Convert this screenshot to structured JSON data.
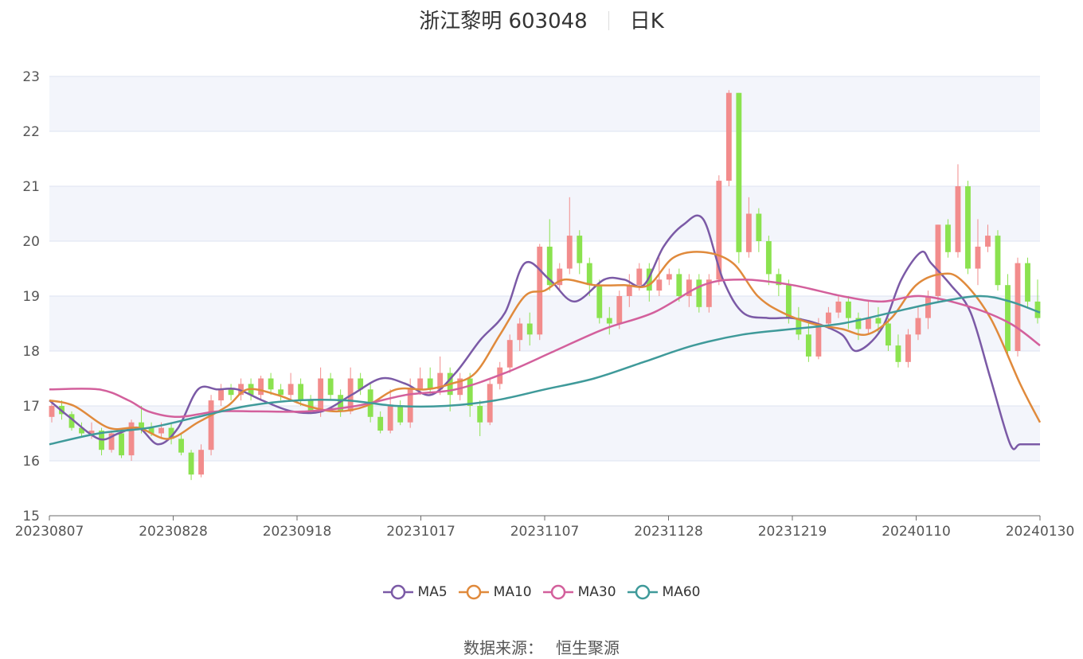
{
  "header": {
    "stock_title": "浙江黎明 603048",
    "period": "日K"
  },
  "source": {
    "label": "数据来源：",
    "name": "恒生聚源"
  },
  "colors": {
    "up": "#f28c8c",
    "down": "#8be24f",
    "MA5": "#7b5aa6",
    "MA10": "#e08a3c",
    "MA30": "#d3609c",
    "MA60": "#3f9a9a",
    "grid": "#dde3f0",
    "band": "#f3f5fb"
  },
  "chart_data": {
    "type": "candlestick",
    "ylim": [
      15,
      23
    ],
    "yticks": [
      "15",
      "16",
      "17",
      "18",
      "19",
      "20",
      "21",
      "22",
      "23"
    ],
    "xticks": [
      "20230807",
      "20230828",
      "20230918",
      "20231017",
      "20231107",
      "20231128",
      "20231219",
      "20240110",
      "20240130"
    ],
    "legend": [
      "MA5",
      "MA10",
      "MA30",
      "MA60"
    ],
    "ma": {
      "MA5": [
        [
          0,
          17.1
        ],
        [
          4,
          16.8
        ],
        [
          10,
          16.4
        ],
        [
          14,
          16.5
        ],
        [
          18,
          16.6
        ],
        [
          22,
          16.3
        ],
        [
          26,
          16.6
        ],
        [
          30,
          17.3
        ],
        [
          34,
          17.3
        ],
        [
          38,
          17.3
        ],
        [
          43,
          17.1
        ],
        [
          49,
          16.9
        ],
        [
          55,
          16.9
        ],
        [
          61,
          17.2
        ],
        [
          67,
          17.5
        ],
        [
          72,
          17.4
        ],
        [
          77,
          17.2
        ],
        [
          82,
          17.6
        ],
        [
          87,
          18.2
        ],
        [
          92,
          18.7
        ],
        [
          96,
          19.6
        ],
        [
          101,
          19.3
        ],
        [
          106,
          18.9
        ],
        [
          112,
          19.3
        ],
        [
          116,
          19.3
        ],
        [
          120,
          19.2
        ],
        [
          124,
          19.9
        ],
        [
          128,
          20.3
        ],
        [
          132,
          20.4
        ],
        [
          136,
          19.3
        ],
        [
          140,
          18.7
        ],
        [
          145,
          18.6
        ],
        [
          150,
          18.6
        ],
        [
          155,
          18.5
        ],
        [
          160,
          18.3
        ],
        [
          163,
          18.0
        ],
        [
          168,
          18.4
        ],
        [
          172,
          19.3
        ],
        [
          176,
          19.8
        ],
        [
          178,
          19.6
        ],
        [
          182,
          19.2
        ],
        [
          186,
          18.7
        ],
        [
          190,
          17.5
        ],
        [
          194,
          16.3
        ],
        [
          196,
          16.3
        ],
        [
          200,
          16.3
        ]
      ],
      "MA10": [
        [
          0,
          17.1
        ],
        [
          5,
          17.0
        ],
        [
          12,
          16.6
        ],
        [
          18,
          16.6
        ],
        [
          24,
          16.4
        ],
        [
          30,
          16.7
        ],
        [
          36,
          17.0
        ],
        [
          40,
          17.3
        ],
        [
          46,
          17.2
        ],
        [
          52,
          17.0
        ],
        [
          58,
          16.9
        ],
        [
          64,
          17.0
        ],
        [
          70,
          17.3
        ],
        [
          76,
          17.3
        ],
        [
          81,
          17.4
        ],
        [
          86,
          17.6
        ],
        [
          91,
          18.3
        ],
        [
          96,
          19.0
        ],
        [
          100,
          19.1
        ],
        [
          104,
          19.3
        ],
        [
          110,
          19.2
        ],
        [
          116,
          19.2
        ],
        [
          121,
          19.2
        ],
        [
          126,
          19.7
        ],
        [
          132,
          19.8
        ],
        [
          138,
          19.6
        ],
        [
          143,
          19.0
        ],
        [
          148,
          18.7
        ],
        [
          154,
          18.5
        ],
        [
          160,
          18.4
        ],
        [
          165,
          18.3
        ],
        [
          170,
          18.6
        ],
        [
          175,
          19.2
        ],
        [
          180,
          19.4
        ],
        [
          184,
          19.3
        ],
        [
          190,
          18.6
        ],
        [
          196,
          17.4
        ],
        [
          200,
          16.7
        ]
      ],
      "MA30": [
        [
          0,
          17.3
        ],
        [
          10,
          17.3
        ],
        [
          16,
          17.1
        ],
        [
          20,
          16.9
        ],
        [
          26,
          16.8
        ],
        [
          34,
          16.9
        ],
        [
          42,
          16.9
        ],
        [
          52,
          16.9
        ],
        [
          62,
          17.0
        ],
        [
          72,
          17.2
        ],
        [
          82,
          17.3
        ],
        [
          92,
          17.6
        ],
        [
          102,
          18.0
        ],
        [
          112,
          18.4
        ],
        [
          122,
          18.7
        ],
        [
          132,
          19.2
        ],
        [
          140,
          19.3
        ],
        [
          150,
          19.2
        ],
        [
          160,
          19.0
        ],
        [
          168,
          18.9
        ],
        [
          176,
          19.0
        ],
        [
          186,
          18.8
        ],
        [
          194,
          18.5
        ],
        [
          200,
          18.1
        ]
      ],
      "MA60": [
        [
          0,
          16.3
        ],
        [
          10,
          16.5
        ],
        [
          20,
          16.6
        ],
        [
          30,
          16.8
        ],
        [
          40,
          17.0
        ],
        [
          50,
          17.1
        ],
        [
          60,
          17.1
        ],
        [
          70,
          17.0
        ],
        [
          80,
          17.0
        ],
        [
          90,
          17.1
        ],
        [
          100,
          17.3
        ],
        [
          110,
          17.5
        ],
        [
          120,
          17.8
        ],
        [
          130,
          18.1
        ],
        [
          140,
          18.3
        ],
        [
          150,
          18.4
        ],
        [
          160,
          18.5
        ],
        [
          170,
          18.7
        ],
        [
          180,
          18.9
        ],
        [
          188,
          19.0
        ],
        [
          194,
          18.9
        ],
        [
          200,
          18.7
        ]
      ]
    },
    "candles": [
      [
        16.8,
        17.0,
        16.7,
        17.1
      ],
      [
        17.0,
        16.85,
        16.75,
        17.1
      ],
      [
        16.85,
        16.6,
        16.55,
        16.9
      ],
      [
        16.6,
        16.5,
        16.45,
        16.7
      ],
      [
        16.5,
        16.55,
        16.4,
        16.7
      ],
      [
        16.55,
        16.2,
        16.1,
        16.6
      ],
      [
        16.2,
        16.5,
        16.15,
        16.55
      ],
      [
        16.5,
        16.1,
        16.05,
        16.55
      ],
      [
        16.1,
        16.7,
        16.0,
        16.75
      ],
      [
        16.7,
        16.6,
        16.5,
        17.0
      ],
      [
        16.6,
        16.5,
        16.45,
        16.7
      ],
      [
        16.5,
        16.6,
        16.4,
        16.7
      ],
      [
        16.6,
        16.4,
        16.3,
        16.7
      ],
      [
        16.4,
        16.15,
        16.1,
        16.5
      ],
      [
        16.15,
        15.75,
        15.65,
        16.2
      ],
      [
        15.75,
        16.2,
        15.7,
        16.3
      ],
      [
        16.2,
        17.1,
        16.1,
        17.2
      ],
      [
        17.1,
        17.3,
        17.0,
        17.4
      ],
      [
        17.3,
        17.2,
        17.1,
        17.4
      ],
      [
        17.2,
        17.4,
        17.1,
        17.5
      ],
      [
        17.4,
        17.2,
        17.1,
        17.5
      ],
      [
        17.2,
        17.5,
        17.1,
        17.55
      ],
      [
        17.5,
        17.3,
        17.2,
        17.6
      ],
      [
        17.3,
        17.2,
        17.1,
        17.4
      ],
      [
        17.2,
        17.4,
        17.1,
        17.6
      ],
      [
        17.4,
        17.1,
        17.0,
        17.5
      ],
      [
        17.1,
        16.9,
        16.85,
        17.2
      ],
      [
        16.9,
        17.5,
        16.8,
        17.7
      ],
      [
        17.5,
        17.2,
        17.1,
        17.6
      ],
      [
        17.2,
        16.9,
        16.8,
        17.3
      ],
      [
        16.9,
        17.5,
        16.85,
        17.7
      ],
      [
        17.5,
        17.3,
        17.2,
        17.6
      ],
      [
        17.3,
        16.8,
        16.7,
        17.4
      ],
      [
        16.8,
        16.55,
        16.5,
        16.9
      ],
      [
        16.55,
        17.0,
        16.5,
        17.3
      ],
      [
        17.0,
        16.7,
        16.65,
        17.1
      ],
      [
        16.7,
        17.3,
        16.6,
        17.5
      ],
      [
        17.3,
        17.5,
        17.2,
        17.7
      ],
      [
        17.5,
        17.3,
        17.2,
        17.7
      ],
      [
        17.3,
        17.6,
        17.2,
        17.9
      ],
      [
        17.6,
        17.2,
        16.9,
        17.7
      ],
      [
        17.2,
        17.5,
        17.1,
        17.6
      ],
      [
        17.5,
        17.0,
        16.8,
        17.6
      ],
      [
        17.0,
        16.7,
        16.45,
        17.1
      ],
      [
        16.7,
        17.4,
        16.65,
        17.5
      ],
      [
        17.4,
        17.7,
        17.3,
        17.8
      ],
      [
        17.7,
        18.2,
        17.6,
        18.3
      ],
      [
        18.2,
        18.5,
        18.0,
        18.6
      ],
      [
        18.5,
        18.3,
        18.1,
        18.7
      ],
      [
        18.3,
        19.9,
        18.2,
        19.95
      ],
      [
        19.9,
        19.2,
        19.1,
        20.4
      ],
      [
        19.2,
        19.5,
        19.1,
        19.6
      ],
      [
        19.5,
        20.1,
        19.4,
        20.8
      ],
      [
        20.1,
        19.6,
        19.4,
        20.2
      ],
      [
        19.6,
        19.2,
        19.0,
        19.7
      ],
      [
        19.2,
        18.6,
        18.5,
        19.3
      ],
      [
        18.6,
        18.5,
        18.3,
        18.8
      ],
      [
        18.5,
        19.0,
        18.4,
        19.1
      ],
      [
        19.0,
        19.2,
        18.8,
        19.4
      ],
      [
        19.2,
        19.5,
        19.1,
        19.6
      ],
      [
        19.5,
        19.1,
        18.9,
        19.6
      ],
      [
        19.1,
        19.3,
        19.0,
        19.7
      ],
      [
        19.3,
        19.4,
        19.2,
        19.5
      ],
      [
        19.4,
        19.0,
        18.9,
        19.5
      ],
      [
        19.0,
        19.3,
        18.8,
        19.4
      ],
      [
        19.3,
        18.8,
        18.7,
        19.4
      ],
      [
        18.8,
        19.3,
        18.7,
        19.4
      ],
      [
        19.3,
        21.1,
        19.2,
        21.2
      ],
      [
        21.1,
        22.7,
        21.0,
        22.75
      ],
      [
        22.7,
        19.8,
        19.6,
        22.7
      ],
      [
        19.8,
        20.5,
        19.7,
        20.8
      ],
      [
        20.5,
        20.0,
        19.8,
        20.6
      ],
      [
        20.0,
        19.4,
        19.2,
        20.1
      ],
      [
        19.4,
        19.2,
        19.0,
        19.5
      ],
      [
        19.2,
        18.6,
        18.5,
        19.3
      ],
      [
        18.6,
        18.3,
        18.2,
        18.8
      ],
      [
        18.3,
        17.9,
        17.8,
        18.5
      ],
      [
        17.9,
        18.5,
        17.85,
        18.6
      ],
      [
        18.5,
        18.7,
        18.4,
        18.8
      ],
      [
        18.7,
        18.9,
        18.6,
        19.0
      ],
      [
        18.9,
        18.6,
        18.4,
        19.0
      ],
      [
        18.6,
        18.4,
        18.2,
        18.7
      ],
      [
        18.4,
        18.6,
        18.3,
        18.9
      ],
      [
        18.6,
        18.5,
        18.3,
        18.8
      ],
      [
        18.5,
        18.1,
        18.0,
        18.6
      ],
      [
        18.1,
        17.8,
        17.7,
        18.3
      ],
      [
        17.8,
        18.3,
        17.7,
        18.4
      ],
      [
        18.3,
        18.6,
        18.2,
        18.8
      ],
      [
        18.6,
        19.0,
        18.4,
        19.1
      ],
      [
        19.0,
        20.3,
        18.9,
        20.3
      ],
      [
        20.3,
        19.8,
        19.7,
        20.4
      ],
      [
        19.8,
        21.0,
        19.7,
        21.4
      ],
      [
        21.0,
        19.5,
        19.4,
        21.1
      ],
      [
        19.5,
        19.9,
        19.2,
        20.4
      ],
      [
        19.9,
        20.1,
        19.8,
        20.3
      ],
      [
        20.1,
        19.2,
        19.1,
        20.2
      ],
      [
        19.2,
        18.0,
        17.9,
        19.4
      ],
      [
        18.0,
        19.6,
        17.9,
        19.7
      ],
      [
        19.6,
        18.9,
        18.8,
        19.7
      ],
      [
        18.9,
        18.6,
        18.5,
        19.3
      ]
    ]
  }
}
